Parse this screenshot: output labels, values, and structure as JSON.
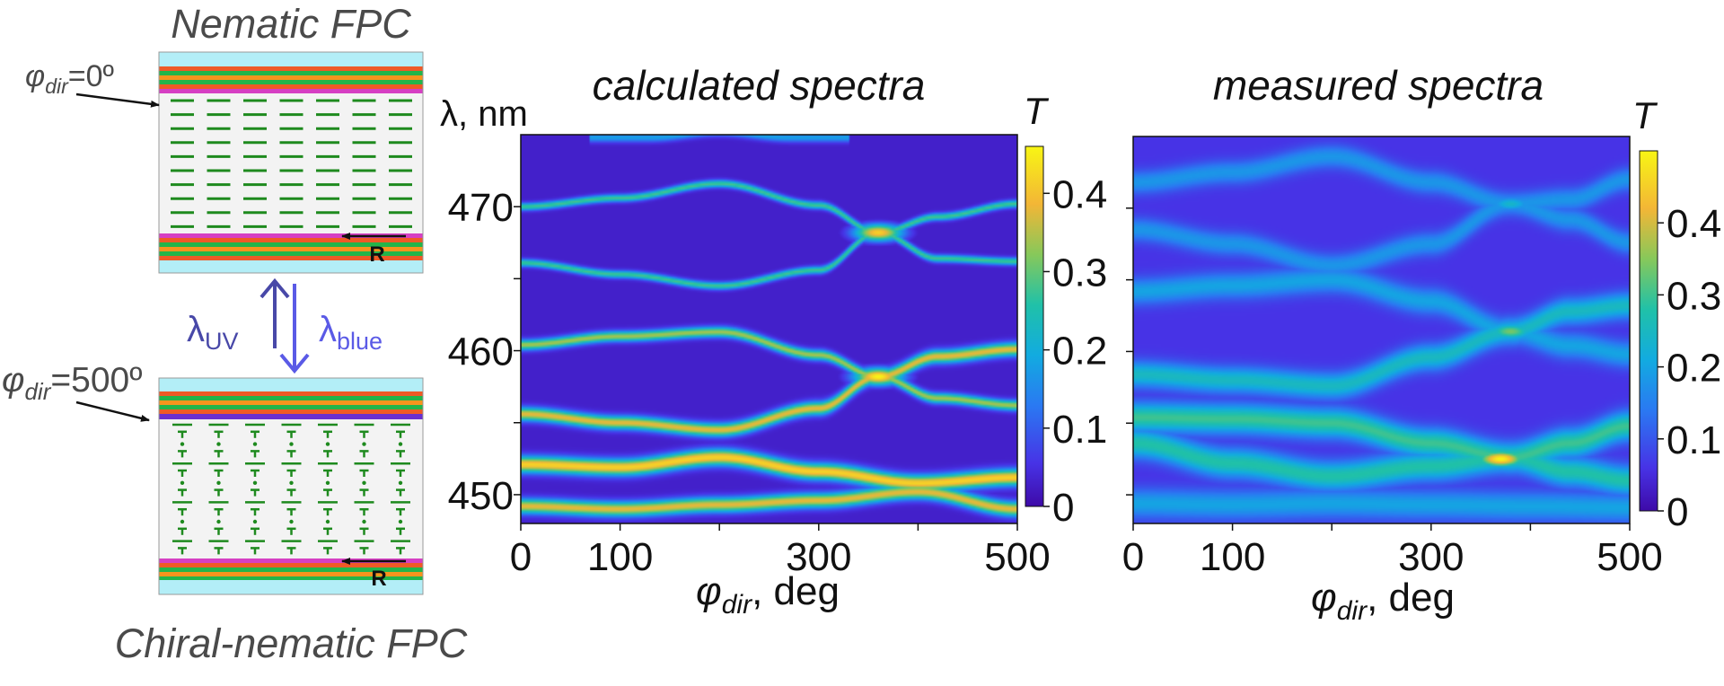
{
  "schematic": {
    "top_title": "Nematic FPC",
    "bottom_title": "Chiral-nematic FPC",
    "phi_symbol": "φ",
    "phi_sub": "dir",
    "top_phi_value": "=0º",
    "bottom_phi_value": "=500º",
    "lambda_symbol": "λ",
    "uv_sub": "UV",
    "blue_sub": "blue",
    "rubbing_label": "R",
    "colors": {
      "glass": "#b3eef7",
      "red": "#ef5a26",
      "green_layer": "#23b54a",
      "orange_layer": "#f7941d",
      "purple": "#6a2fd0",
      "magenta": "#d63fc3",
      "lc_area": "#f3f3f3",
      "molecule": "#1e8a1e",
      "uv_arrow": "#4848a8",
      "blue_arrow": "#5a5ae6"
    }
  },
  "chart_data": [
    {
      "type": "heatmap",
      "title": "calculated spectra",
      "ylabel": "λ, nm",
      "xlabel_symbol": "φ",
      "xlabel_sub": "dir",
      "xlabel_rest": ", deg",
      "xlim": [
        0,
        500
      ],
      "ylim": [
        448,
        475
      ],
      "x_ticks": [
        0,
        100,
        300,
        500
      ],
      "x_minor_ticks": [
        200,
        400
      ],
      "y_ticks": [
        450,
        460,
        470
      ],
      "y_minor_ticks": [
        455,
        465
      ],
      "colorbar_label": "T",
      "colorbar_range": [
        0,
        0.46
      ],
      "colorbar_ticks": [
        "0",
        "0.1",
        "0.2",
        "0.3",
        "0.4"
      ],
      "background_T": 0.03,
      "bands": [
        {
          "points": [
            [
              0,
              470
            ],
            [
              100,
              470.6
            ],
            [
              200,
              471.6
            ],
            [
              300,
              470.1
            ],
            [
              360,
              468.2
            ],
            [
              420,
              466.4
            ],
            [
              500,
              466.2
            ]
          ],
          "T": 0.28,
          "width": 0.25
        },
        {
          "points": [
            [
              0,
              466.1
            ],
            [
              100,
              465.3
            ],
            [
              200,
              464.5
            ],
            [
              300,
              465.6
            ],
            [
              360,
              468.2
            ],
            [
              420,
              469.3
            ],
            [
              500,
              470.2
            ]
          ],
          "T": 0.28,
          "width": 0.25
        },
        {
          "points": [
            [
              0,
              460.4
            ],
            [
              100,
              461
            ],
            [
              200,
              461.3
            ],
            [
              300,
              459.7
            ],
            [
              360,
              458.2
            ],
            [
              420,
              456.7
            ],
            [
              500,
              456.2
            ]
          ],
          "T": 0.34,
          "width": 0.35
        },
        {
          "points": [
            [
              0,
              455.6
            ],
            [
              100,
              455
            ],
            [
              200,
              454.5
            ],
            [
              300,
              456
            ],
            [
              360,
              458.2
            ],
            [
              420,
              459.6
            ],
            [
              500,
              460.1
            ]
          ],
          "T": 0.38,
          "width": 0.45
        },
        {
          "points": [
            [
              0,
              452.1
            ],
            [
              100,
              451.9
            ],
            [
              200,
              452.6
            ],
            [
              300,
              451.6
            ],
            [
              400,
              450.8
            ],
            [
              500,
              451.2
            ]
          ],
          "T": 0.42,
          "width": 0.55
        },
        {
          "points": [
            [
              0,
              449.2
            ],
            [
              100,
              449
            ],
            [
              200,
              449.3
            ],
            [
              300,
              449.6
            ],
            [
              400,
              450.2
            ],
            [
              500,
              449
            ]
          ],
          "T": 0.38,
          "width": 0.5
        },
        {
          "points": [
            [
              130,
              474.8
            ],
            [
              200,
              475.2
            ],
            [
              270,
              474.8
            ]
          ],
          "T": 0.18,
          "width": 0.3
        }
      ],
      "hotspots": [
        {
          "x": 360,
          "y": 468.2,
          "T": 0.42
        },
        {
          "x": 360,
          "y": 458.2,
          "T": 0.46
        }
      ]
    },
    {
      "type": "heatmap",
      "title": "measured spectra",
      "xlabel_symbol": "φ",
      "xlabel_sub": "dir",
      "xlabel_rest": ", deg",
      "xlim": [
        0,
        500
      ],
      "ylim": [
        448,
        475
      ],
      "x_ticks": [
        0,
        100,
        300,
        500
      ],
      "x_minor_ticks": [
        200,
        400
      ],
      "y_minor_ticks": [
        450,
        455,
        460,
        465,
        470
      ],
      "colorbar_label": "T",
      "colorbar_range": [
        0,
        0.5
      ],
      "colorbar_ticks": [
        "0",
        "0.1",
        "0.2",
        "0.3",
        "0.4"
      ],
      "background_T": 0.06,
      "bands": [
        {
          "points": [
            [
              0,
              471.8
            ],
            [
              100,
              472.5
            ],
            [
              200,
              473.6
            ],
            [
              300,
              471.8
            ],
            [
              380,
              470.3
            ],
            [
              440,
              470.6
            ],
            [
              500,
              472
            ]
          ],
          "T": 0.18,
          "width": 0.8
        },
        {
          "points": [
            [
              0,
              468.5
            ],
            [
              100,
              467.5
            ],
            [
              200,
              466
            ],
            [
              300,
              467.5
            ],
            [
              380,
              470.3
            ],
            [
              440,
              469.2
            ],
            [
              500,
              467.6
            ]
          ],
          "T": 0.18,
          "width": 0.8
        },
        {
          "points": [
            [
              0,
              464.2
            ],
            [
              100,
              464.6
            ],
            [
              200,
              465
            ],
            [
              300,
              463.5
            ],
            [
              380,
              461.4
            ],
            [
              440,
              460.4
            ],
            [
              500,
              459.8
            ]
          ],
          "T": 0.2,
          "width": 0.9
        },
        {
          "points": [
            [
              0,
              458.4
            ],
            [
              100,
              458
            ],
            [
              200,
              457.6
            ],
            [
              300,
              459.6
            ],
            [
              380,
              461.4
            ],
            [
              440,
              462.8
            ],
            [
              500,
              463.2
            ]
          ],
          "T": 0.25,
          "width": 0.9
        },
        {
          "points": [
            [
              0,
              455.4
            ],
            [
              100,
              455.3
            ],
            [
              200,
              455
            ],
            [
              300,
              453.6
            ],
            [
              380,
              452.6
            ],
            [
              440,
              453.6
            ],
            [
              500,
              454.8
            ]
          ],
          "T": 0.3,
          "width": 1
        },
        {
          "points": [
            [
              0,
              453.6
            ],
            [
              100,
              452.2
            ],
            [
              200,
              451.3
            ],
            [
              300,
              452
            ],
            [
              380,
              452.6
            ],
            [
              440,
              451.6
            ],
            [
              500,
              451
            ]
          ],
          "T": 0.28,
          "width": 1
        },
        {
          "points": [
            [
              0,
              449.4
            ],
            [
              100,
              449.3
            ],
            [
              200,
              449.4
            ],
            [
              300,
              449.3
            ],
            [
              400,
              449.2
            ],
            [
              500,
              449.1
            ]
          ],
          "T": 0.2,
          "width": 1
        }
      ],
      "hotspots": [
        {
          "x": 370,
          "y": 452.5,
          "T": 0.5
        },
        {
          "x": 380,
          "y": 461.4,
          "T": 0.34
        },
        {
          "x": 380,
          "y": 470.3,
          "T": 0.24
        }
      ]
    }
  ]
}
